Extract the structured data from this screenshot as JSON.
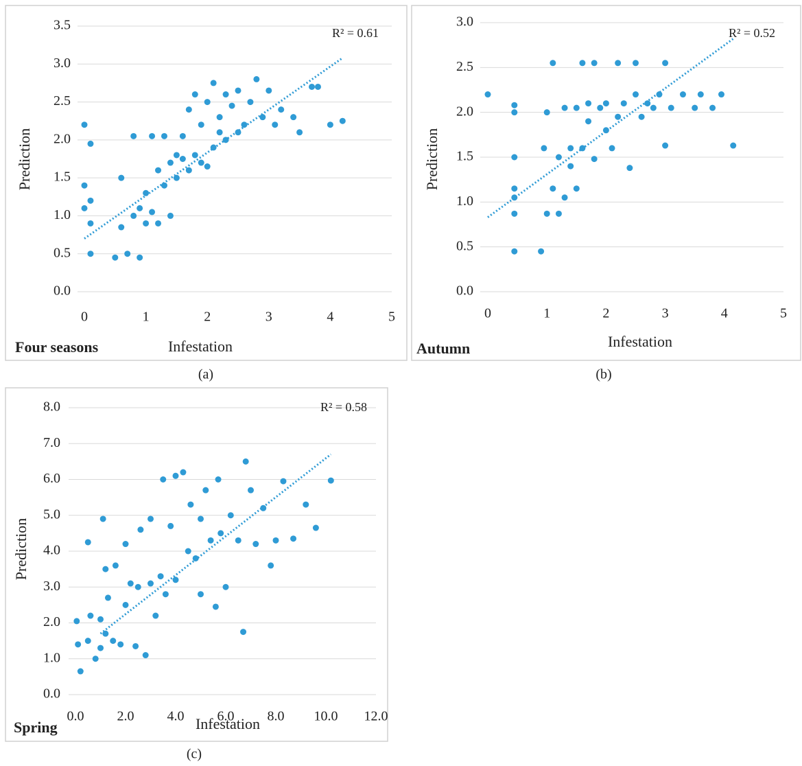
{
  "chart_data": [
    {
      "type": "scatter",
      "label": "Four seasons",
      "caption": "(a)",
      "x_label": "Infestation",
      "y_label": "Prediction",
      "annotation": "R² = 0.61",
      "color": "#2f9bd5",
      "x": [
        0,
        0,
        0,
        0.1,
        0.1,
        0.1,
        0.1,
        0.5,
        0.6,
        0.6,
        0.7,
        0.8,
        0.8,
        0.9,
        0.9,
        1.0,
        1.0,
        1.1,
        1.1,
        1.2,
        1.2,
        1.3,
        1.3,
        1.4,
        1.4,
        1.5,
        1.5,
        1.6,
        1.6,
        1.7,
        1.7,
        1.8,
        1.8,
        1.9,
        1.9,
        2.0,
        2.0,
        2.1,
        2.1,
        2.2,
        2.2,
        2.3,
        2.3,
        2.4,
        2.5,
        2.5,
        2.6,
        2.7,
        2.8,
        2.9,
        3.0,
        3.1,
        3.2,
        3.4,
        3.5,
        3.7,
        3.8,
        4.0,
        4.2
      ],
      "values": [
        2.2,
        1.4,
        1.1,
        0.9,
        1.2,
        0.5,
        1.95,
        0.45,
        0.85,
        1.5,
        0.5,
        1.0,
        2.05,
        0.45,
        1.1,
        0.9,
        1.3,
        1.05,
        2.05,
        1.6,
        0.9,
        1.4,
        2.05,
        1.7,
        1.0,
        1.8,
        1.5,
        1.75,
        2.05,
        1.6,
        2.4,
        1.8,
        2.6,
        1.7,
        2.2,
        1.65,
        2.5,
        2.75,
        1.9,
        2.3,
        2.1,
        2.0,
        2.6,
        2.45,
        2.1,
        2.65,
        2.2,
        2.5,
        2.8,
        2.3,
        2.65,
        2.2,
        2.4,
        2.3,
        2.1,
        2.7,
        2.7,
        2.2,
        2.25
      ],
      "trendline": {
        "x": [
          0,
          4.2
        ],
        "values": [
          0.7,
          3.08
        ]
      },
      "xlim": [
        0,
        5
      ],
      "xticks": [
        0,
        1,
        2,
        3,
        4,
        5
      ],
      "ylim": [
        0,
        3.5
      ],
      "yticks": [
        {
          "value": 0,
          "label": "0.0"
        },
        {
          "value": 0.5,
          "label": "0.5"
        },
        {
          "value": 1,
          "label": "1.0"
        },
        {
          "value": 1.5,
          "label": "1.5"
        },
        {
          "value": 2,
          "label": "2.0"
        },
        {
          "value": 2.5,
          "label": "2.5"
        },
        {
          "value": 3,
          "label": "3.0"
        },
        {
          "value": 3.5,
          "label": "3.5"
        }
      ],
      "grid": true
    },
    {
      "type": "scatter",
      "label": "Autumn",
      "caption": "(b)",
      "x_label": "Infestation",
      "y_label": "Prediction",
      "annotation": "R² = 0.52",
      "color": "#2f9bd5",
      "x": [
        0,
        0.45,
        0.45,
        0.45,
        0.45,
        0.45,
        0.45,
        0.45,
        0.9,
        0.95,
        1.0,
        1.0,
        1.1,
        1.1,
        1.2,
        1.2,
        1.3,
        1.3,
        1.4,
        1.4,
        1.5,
        1.5,
        1.6,
        1.6,
        1.7,
        1.7,
        1.8,
        1.8,
        1.9,
        2.0,
        2.0,
        2.1,
        2.2,
        2.2,
        2.3,
        2.4,
        2.5,
        2.5,
        2.6,
        2.7,
        2.8,
        2.9,
        3.0,
        3.0,
        3.1,
        3.3,
        3.5,
        3.6,
        3.8,
        3.95,
        4.15
      ],
      "values": [
        2.2,
        0.45,
        0.87,
        1.15,
        1.5,
        2.0,
        2.08,
        1.05,
        0.45,
        1.6,
        2.0,
        0.87,
        2.55,
        1.15,
        1.5,
        0.87,
        2.05,
        1.05,
        1.4,
        1.6,
        1.15,
        2.05,
        2.55,
        1.6,
        1.9,
        2.1,
        2.55,
        1.48,
        2.05,
        1.8,
        2.1,
        1.6,
        2.55,
        1.95,
        2.1,
        1.38,
        2.55,
        2.2,
        1.95,
        2.1,
        2.05,
        2.2,
        2.55,
        1.63,
        2.05,
        2.2,
        2.05,
        2.2,
        2.05,
        2.2,
        1.63
      ],
      "trendline": {
        "x": [
          0,
          4.15
        ],
        "values": [
          0.83,
          2.82
        ]
      },
      "xlim": [
        0,
        5
      ],
      "xticks": [
        0,
        1,
        2,
        3,
        4,
        5
      ],
      "ylim": [
        0,
        3
      ],
      "yticks": [
        {
          "value": 0,
          "label": "0.0"
        },
        {
          "value": 0.5,
          "label": "0.5"
        },
        {
          "value": 1,
          "label": "1.0"
        },
        {
          "value": 1.5,
          "label": "1.5"
        },
        {
          "value": 2,
          "label": "2.0"
        },
        {
          "value": 2.5,
          "label": "2.5"
        },
        {
          "value": 3,
          "label": "3.0"
        }
      ],
      "grid": true
    },
    {
      "type": "scatter",
      "label": "Spring",
      "caption": "(c)",
      "x_label": "Infestation",
      "y_label": "Prediction",
      "annotation": "R² = 0.58",
      "color": "#2f9bd5",
      "x": [
        0.05,
        0.1,
        0.2,
        0.5,
        0.5,
        0.6,
        0.8,
        1.0,
        1.0,
        1.1,
        1.2,
        1.2,
        1.3,
        1.5,
        1.6,
        1.8,
        2.0,
        2.0,
        2.2,
        2.4,
        2.5,
        2.6,
        2.8,
        3.0,
        3.0,
        3.2,
        3.4,
        3.5,
        3.6,
        3.8,
        4.0,
        4.0,
        4.3,
        4.5,
        4.6,
        4.8,
        5.0,
        5.0,
        5.2,
        5.4,
        5.6,
        5.7,
        5.8,
        6.0,
        6.2,
        6.5,
        6.7,
        6.8,
        7.0,
        7.2,
        7.5,
        7.8,
        8.0,
        8.3,
        8.7,
        9.2,
        9.6,
        10.2
      ],
      "values": [
        2.05,
        1.4,
        0.65,
        4.25,
        1.5,
        2.2,
        1.0,
        2.1,
        1.3,
        4.9,
        3.5,
        1.7,
        2.7,
        1.5,
        3.6,
        1.4,
        4.2,
        2.5,
        3.1,
        1.35,
        3.0,
        4.6,
        1.1,
        3.1,
        4.9,
        2.2,
        3.3,
        6.0,
        2.8,
        4.7,
        6.1,
        3.2,
        6.2,
        4.0,
        5.3,
        3.8,
        4.9,
        2.8,
        5.7,
        4.3,
        2.45,
        6.0,
        4.5,
        3.0,
        5.0,
        4.3,
        1.75,
        6.5,
        5.7,
        4.2,
        5.2,
        3.6,
        4.3,
        5.95,
        4.35,
        5.3,
        4.65,
        5.97
      ],
      "trendline": {
        "x": [
          1,
          10.2
        ],
        "values": [
          1.7,
          6.7
        ]
      },
      "xlim": [
        0,
        12
      ],
      "xticks": [
        {
          "value": 0,
          "label": "0.0"
        },
        {
          "value": 2,
          "label": "2.0"
        },
        {
          "value": 4,
          "label": "4.0"
        },
        {
          "value": 6,
          "label": "6.0"
        },
        {
          "value": 8,
          "label": "8.0"
        },
        {
          "value": 10,
          "label": "10.0"
        },
        {
          "value": 12,
          "label": "12.0"
        }
      ],
      "ylim": [
        0,
        8
      ],
      "yticks": [
        {
          "value": 0,
          "label": "0.0"
        },
        {
          "value": 1,
          "label": "1.0"
        },
        {
          "value": 2,
          "label": "2.0"
        },
        {
          "value": 3,
          "label": "3.0"
        },
        {
          "value": 4,
          "label": "4.0"
        },
        {
          "value": 5,
          "label": "5.0"
        },
        {
          "value": 6,
          "label": "6.0"
        },
        {
          "value": 7,
          "label": "7.0"
        },
        {
          "value": 8,
          "label": "8.0"
        }
      ],
      "grid": true
    }
  ]
}
